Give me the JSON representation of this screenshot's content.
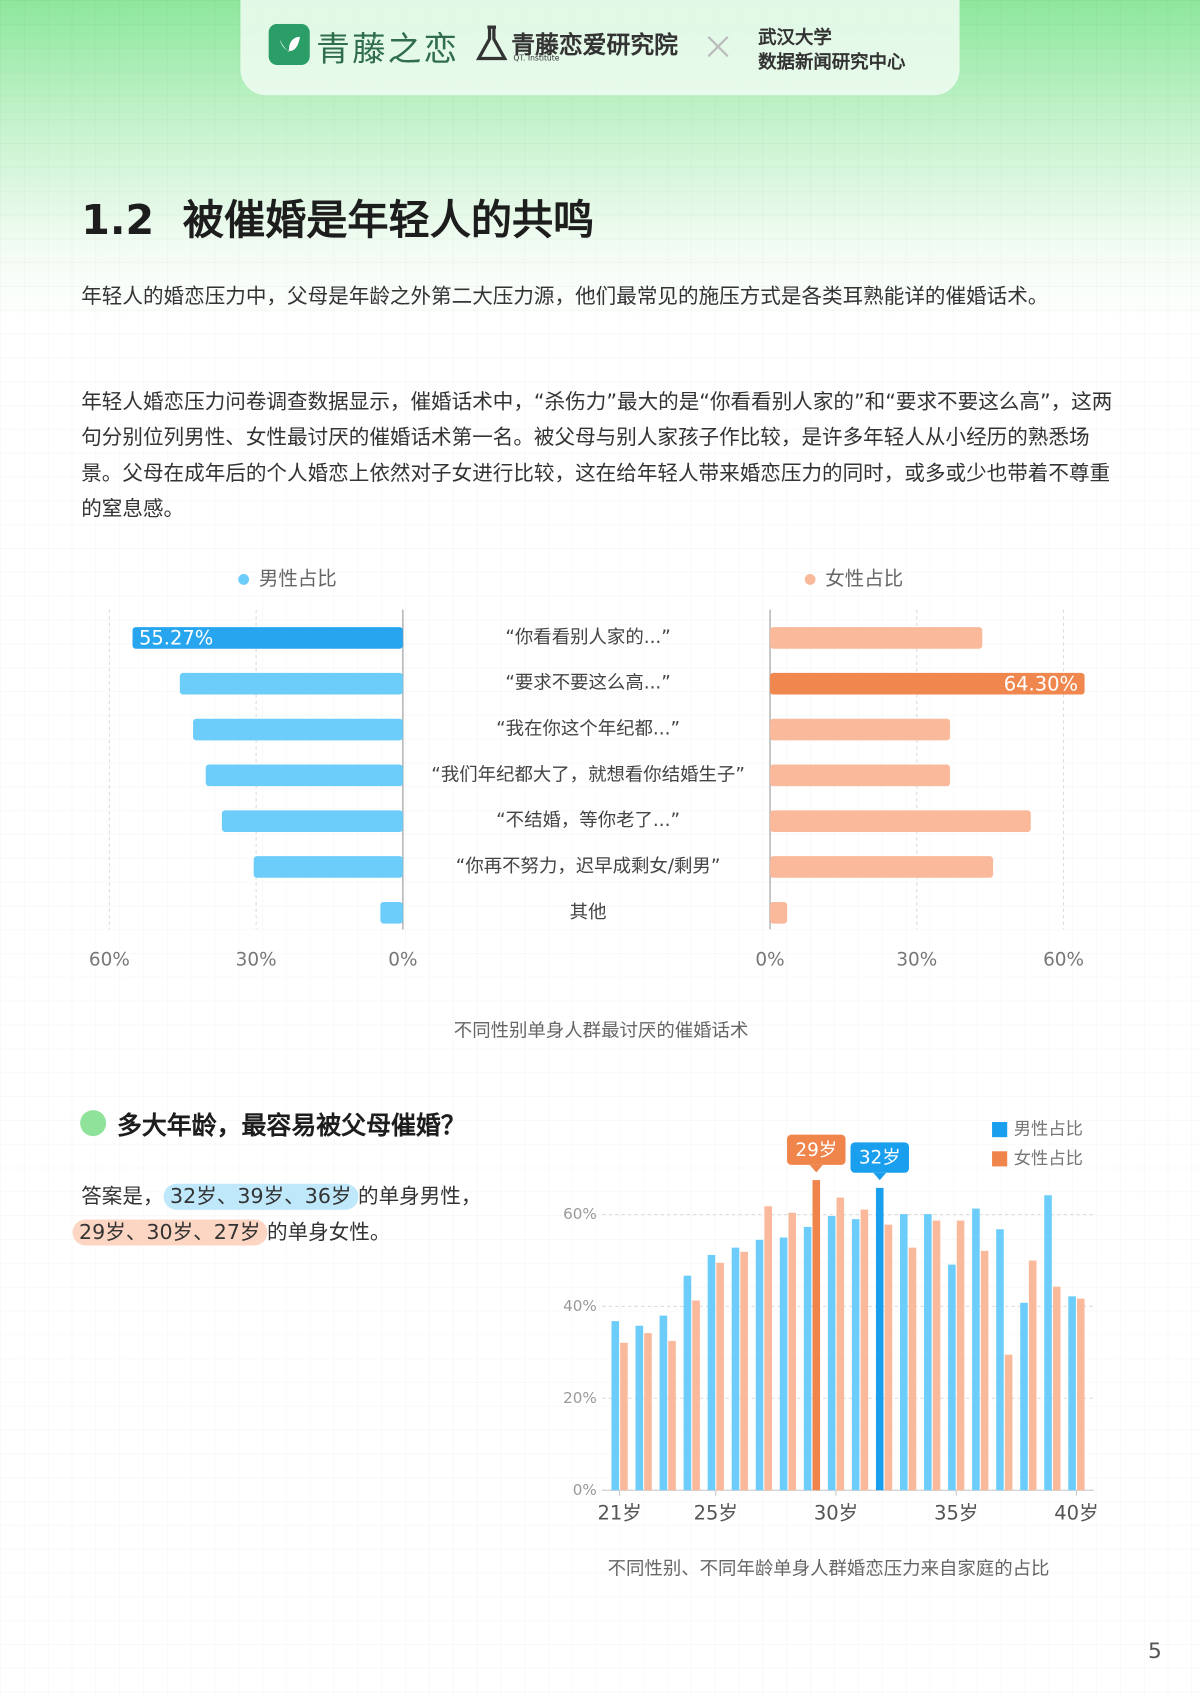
{
  "header": {
    "brand": "青藤之恋",
    "institute": "青藤恋爱研究院",
    "institute_en": "QT. Institute",
    "partner_line1": "武汉大学",
    "partner_line2": "数据新闻研究中心"
  },
  "section_title": "1.2  被催婚是年轻人的共鸣",
  "paragraphs": [
    "年轻人的婚恋压力中，父母是年龄之外第二大压力源，他们最常见的施压方式是各类耳熟能详的催婚话术。",
    "年轻人婚恋压力问卷调查数据显示，催婚话术中，“杀伤力”最大的是“你看看别人家的”和“要求不要这么高”，这两句分别位列男性、女性最讨厌的催婚话术第一名。被父母与别人家孩子作比较，是许多年轻人从小经历的熟悉场景。父母在成年后的个人婚恋上依然对子女进行比较，这在给年轻人带来婚恋压力的同时，或多或少也带着不尊重的窒息感。"
  ],
  "subsection": {
    "title": "多大年龄，最容易被父母催婚？",
    "line1": {
      "prefix": "答案是，",
      "highlight": "32岁、39岁、36岁",
      "suffix": "的单身男性，"
    },
    "line2": {
      "highlight": "29岁、30岁、27岁",
      "suffix": "的单身女性。"
    }
  },
  "page_number": "5",
  "chart_data": [
    {
      "type": "butterfly",
      "caption": "不同性别单身人群最讨厌的催婚话术",
      "categories": [
        "“你看看别人家的...”",
        "“要求不要这么高...”",
        "“我在你这个年纪都...”",
        "“我们年纪都大了，就想看你结婚生子”",
        "“不结婚，等你老了...”",
        "“你再不努力，迟早成剩女/剩男”",
        "其他"
      ],
      "series": [
        {
          "name": "男性占比",
          "color": "#6ccdfa",
          "highlight_color": "#27a6ef",
          "values": [
            55.27,
            45.6,
            42.9,
            40.3,
            37.0,
            30.5,
            4.6
          ],
          "value_labels": [
            "55.27%",
            null,
            null,
            null,
            null,
            null,
            null
          ]
        },
        {
          "name": "女性占比",
          "color": "#f9b99a",
          "highlight_color": "#f0874f",
          "values": [
            43.4,
            64.3,
            36.8,
            36.8,
            53.3,
            45.6,
            3.5
          ],
          "value_labels": [
            null,
            "64.30%",
            null,
            null,
            null,
            null,
            null
          ]
        }
      ],
      "xlim": [
        0,
        60
      ],
      "xticks": [
        {
          "value": 0,
          "label": "0%"
        },
        {
          "value": 30,
          "label": "30%"
        },
        {
          "value": 60,
          "label": "60%"
        }
      ],
      "grid": true
    },
    {
      "type": "bar",
      "caption": "不同性别、不同年龄单身人群婚恋压力来自家庭的占比",
      "x": [
        21,
        22,
        23,
        24,
        25,
        26,
        27,
        28,
        29,
        30,
        31,
        32,
        33,
        34,
        35,
        36,
        37,
        38,
        39,
        40
      ],
      "series": [
        {
          "name": "男性占比",
          "color": "#6ccdfa",
          "highlight_color": "#1a9fee",
          "values": [
            36.8,
            35.8,
            38.0,
            46.7,
            51.2,
            52.8,
            54.5,
            55.0,
            57.3,
            59.7,
            59.0,
            65.8,
            60.1,
            60.1,
            49.1,
            61.3,
            56.8,
            40.8,
            64.2,
            42.2
          ]
        },
        {
          "name": "女性占比",
          "color": "#f9b99a",
          "highlight_color": "#f0854c",
          "values": [
            32.1,
            34.2,
            32.5,
            41.3,
            49.5,
            51.9,
            61.8,
            60.4,
            67.5,
            63.7,
            61.1,
            57.8,
            52.8,
            58.7,
            58.7,
            52.1,
            29.5,
            50.0,
            44.3,
            41.7
          ]
        }
      ],
      "annotations": [
        {
          "text": "29岁",
          "x": 29,
          "series": "女性占比"
        },
        {
          "text": "32岁",
          "x": 32,
          "series": "男性占比"
        }
      ],
      "xlim": [
        20.5,
        40.5
      ],
      "xticks": [
        {
          "value": 21,
          "label": "21岁"
        },
        {
          "value": 25,
          "label": "25岁"
        },
        {
          "value": 30,
          "label": "30岁"
        },
        {
          "value": 35,
          "label": "35岁"
        },
        {
          "value": 40,
          "label": "40岁"
        }
      ],
      "ylim": [
        0,
        70
      ],
      "yticks": [
        {
          "value": 0,
          "label": "0%"
        },
        {
          "value": 20,
          "label": "20%"
        },
        {
          "value": 40,
          "label": "40%"
        },
        {
          "value": 60,
          "label": "60%"
        }
      ],
      "grid": true,
      "legend": "top-right"
    }
  ]
}
